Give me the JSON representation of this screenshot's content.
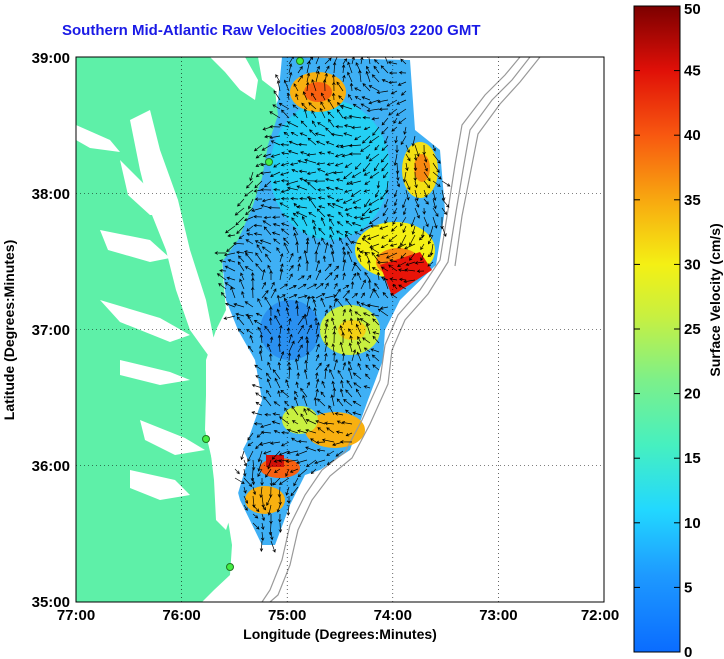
{
  "title": "Southern Mid-Atlantic Raw Velocities 2008/05/03 2200 GMT",
  "x_axis": {
    "label": "Longitude (Degrees:Minutes)",
    "ticks": [
      "77:00",
      "76:00",
      "75:00",
      "74:00",
      "73:00",
      "72:00"
    ]
  },
  "y_axis": {
    "label": "Latitude (Degrees:Minutes)",
    "ticks": [
      "39:00",
      "38:00",
      "37:00",
      "36:00",
      "35:00"
    ]
  },
  "colorbar": {
    "label": "Surface Velocity (cm/s)",
    "ticks": [
      "50",
      "45",
      "40",
      "35",
      "30",
      "25",
      "20",
      "15",
      "10",
      "5",
      "0"
    ],
    "range": [
      0,
      50
    ],
    "colors": [
      "#0a6cff",
      "#1ea0ff",
      "#28d6f0",
      "#5ef0a8",
      "#b8f040",
      "#f4f014",
      "#f8b010",
      "#f86010",
      "#e81408",
      "#8a0000"
    ]
  },
  "map": {
    "lon_range": [
      -77,
      -72
    ],
    "lat_range": [
      35,
      39
    ],
    "land_color": "#5ef0a8",
    "grid": "dotted"
  }
}
